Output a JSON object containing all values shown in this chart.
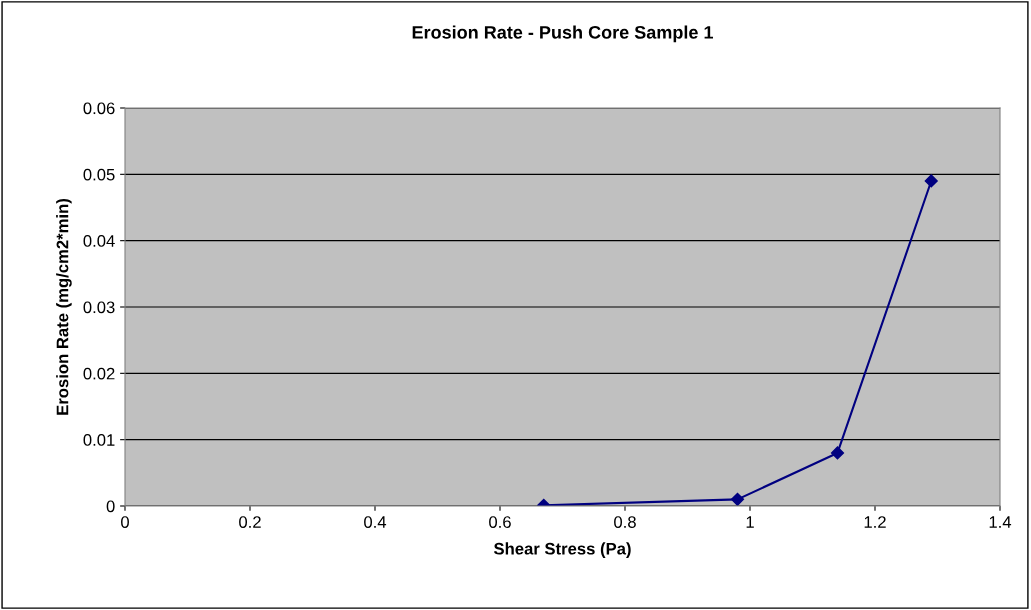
{
  "chart_data": {
    "type": "line",
    "title": "Erosion Rate - Push Core Sample 1",
    "xlabel": "Shear Stress (Pa)",
    "ylabel": "Erosion Rate (mg/cm2*min)",
    "x": [
      0.67,
      0.98,
      1.14,
      1.29
    ],
    "series": [
      {
        "color": "#000080",
        "values": [
          0.0001,
          0.001,
          0.008,
          0.049
        ]
      }
    ],
    "xlim": [
      0,
      1.4
    ],
    "xticks": [
      0,
      0.2,
      0.4,
      0.6,
      0.8,
      1,
      1.2,
      1.4
    ],
    "ylim": [
      0,
      0.06
    ],
    "yticks": [
      0,
      0.01,
      0.02,
      0.03,
      0.04,
      0.05,
      0.06
    ],
    "grid": "y",
    "marker": "diamond",
    "line_style": "solid"
  }
}
